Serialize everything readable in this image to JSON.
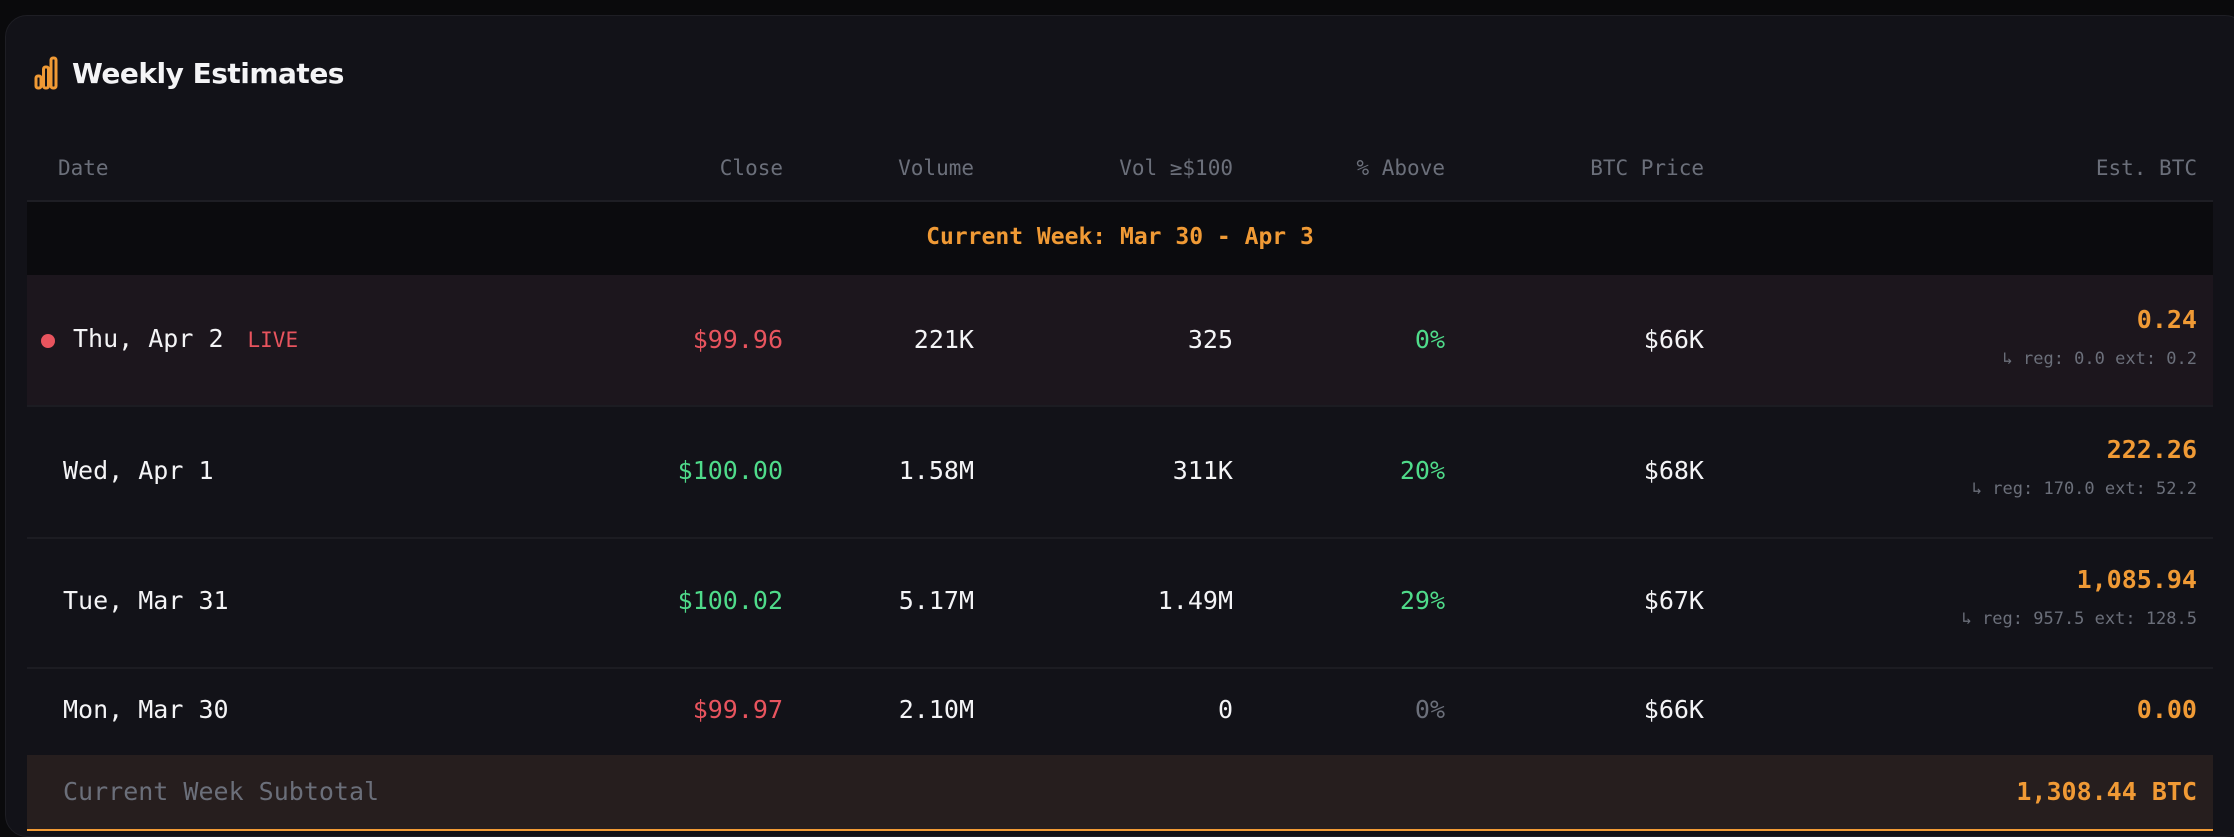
{
  "title": "Weekly Estimates",
  "columns": [
    "Date",
    "Close",
    "Volume",
    "Vol ≥$100",
    "% Above",
    "BTC Price",
    "Est. BTC"
  ],
  "week_label": "Current Week: Mar 30 - Apr 3",
  "rows": [
    {
      "date": "Thu, Apr 2",
      "live": "LIVE",
      "close": "$99.96",
      "volume": "221K",
      "vol100": "325",
      "pct": "0%",
      "btc_price": "$66K",
      "est": "0.24",
      "detail": "↳ reg: 0.0 ext: 0.2"
    },
    {
      "date": "Wed, Apr 1",
      "close": "$100.00",
      "volume": "1.58M",
      "vol100": "311K",
      "pct": "20%",
      "btc_price": "$68K",
      "est": "222.26",
      "detail": "↳ reg: 170.0 ext: 52.2"
    },
    {
      "date": "Tue, Mar 31",
      "close": "$100.02",
      "volume": "5.17M",
      "vol100": "1.49M",
      "pct": "29%",
      "btc_price": "$67K",
      "est": "1,085.94",
      "detail": "↳ reg: 957.5 ext: 128.5"
    },
    {
      "date": "Mon, Mar 30",
      "close": "$99.97",
      "volume": "2.10M",
      "vol100": "0",
      "pct": "0%",
      "btc_price": "$66K",
      "est": "0.00"
    }
  ],
  "subtotal": {
    "label": "Current Week Subtotal",
    "value": "1,308.44 BTC"
  },
  "colors": {
    "accent": "#f09a35",
    "down": "#e8545e",
    "up": "#4fdb8a",
    "muted": "#6b6f7a"
  }
}
